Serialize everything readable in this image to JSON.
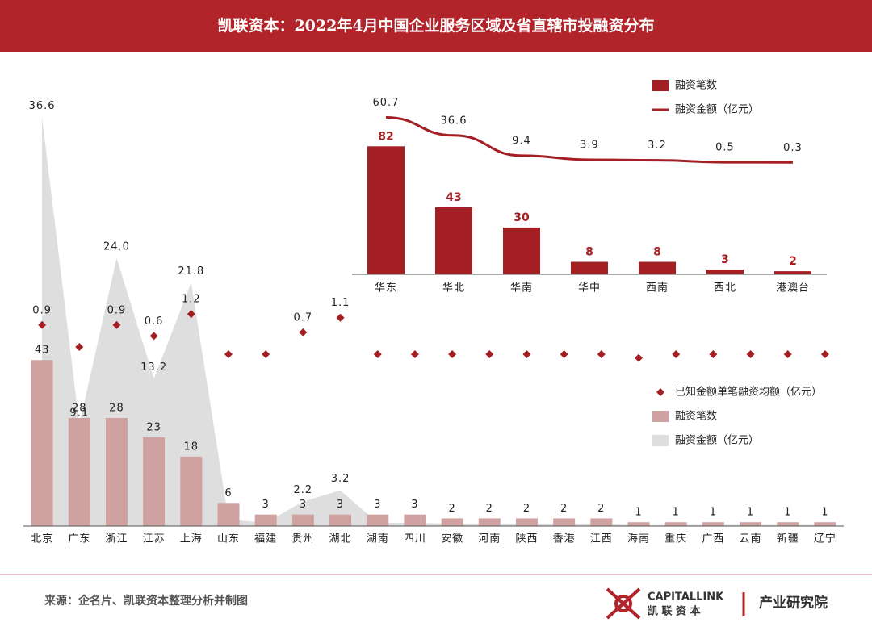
{
  "header": {
    "title": "凯联资本：2022年4月中国企业服务区域及省直辖市投融资分布"
  },
  "chart_data": [
    {
      "type": "combo",
      "categories": [
        "北京",
        "广东",
        "浙江",
        "江苏",
        "上海",
        "山东",
        "福建",
        "贵州",
        "湖北",
        "湖南",
        "四川",
        "安徽",
        "河南",
        "陕西",
        "香港",
        "江西",
        "海南",
        "重庆",
        "广西",
        "云南",
        "新疆",
        "辽宁"
      ],
      "series": [
        {
          "name": "已知金额单笔融资均额（亿元）",
          "type": "scatter",
          "color": "#a31f24",
          "values": [
            0.9,
            0.3,
            0.9,
            0.6,
            1.2,
            0.1,
            0.1,
            0.7,
            1.1,
            0.1,
            0.1,
            0.1,
            0.1,
            0.1,
            0.1,
            0.1,
            0.0,
            0.1,
            0.1,
            0.1,
            0.1,
            0.1
          ],
          "value_labels": [
            "0.9",
            null,
            "0.9",
            "0.6",
            "1.2",
            null,
            null,
            "0.7",
            "1.1",
            null,
            null,
            null,
            null,
            null,
            null,
            null,
            null,
            null,
            null,
            null,
            null,
            null
          ],
          "ylim": [
            -4.6,
            6.7
          ]
        },
        {
          "name": "融资笔数",
          "type": "bar",
          "color": "#cfa1a0",
          "values": [
            43,
            28,
            28,
            23,
            18,
            6,
            3,
            3,
            3,
            3,
            3,
            2,
            2,
            2,
            2,
            2,
            1,
            1,
            1,
            1,
            1,
            1
          ],
          "ylim": [
            0,
            107
          ]
        },
        {
          "name": "融资金额（亿元）",
          "type": "area",
          "color": "#dedede",
          "values": [
            36.6,
            9.1,
            24.0,
            13.2,
            21.8,
            0.6,
            0.3,
            2.2,
            3.2,
            0.3,
            0.3,
            0.2,
            0.2,
            0.2,
            0.2,
            0.2,
            0.05,
            0.1,
            0.1,
            0.1,
            0.1,
            0.1
          ],
          "value_labels": [
            "36.6",
            "9.1",
            "24.0",
            "13.2",
            "21.8",
            null,
            null,
            "2.2",
            "3.2",
            null,
            null,
            null,
            null,
            null,
            null,
            null,
            null,
            null,
            null,
            null,
            null,
            null
          ],
          "ylim": [
            0,
            37
          ]
        }
      ]
    },
    {
      "type": "combo",
      "categories": [
        "华东",
        "华北",
        "华南",
        "华中",
        "西南",
        "西北",
        "港澳台"
      ],
      "series": [
        {
          "name": "融资笔数",
          "type": "bar",
          "color": "#a31f24",
          "values": [
            82,
            43,
            30,
            8,
            8,
            3,
            2
          ],
          "ylim": [
            0,
            124
          ]
        },
        {
          "name": "融资金额（亿元）",
          "type": "line",
          "color": "#a31f24",
          "values": [
            60.7,
            36.6,
            9.4,
            3.9,
            3.2,
            0.5,
            0.3
          ],
          "ylim": [
            -150,
            110
          ]
        }
      ]
    }
  ],
  "footer": {
    "source": "来源：企名片、凯联资本整理分析并制图",
    "logo_en": "CAPITALLINK",
    "logo_cn": "凯 联 资 本",
    "institute": "产业研究院"
  }
}
